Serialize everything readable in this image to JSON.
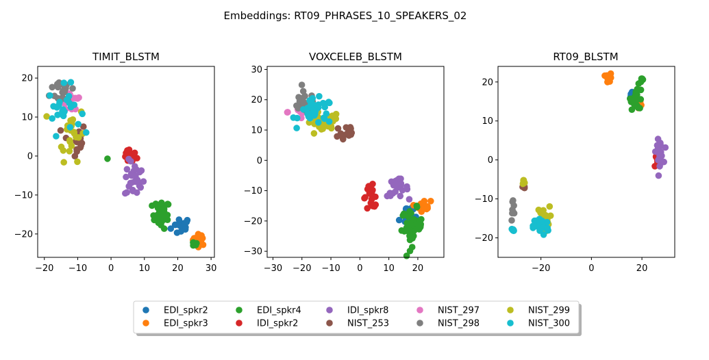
{
  "figure_title": "Embeddings: RT09_PHRASES_10_SPEAKERS_02",
  "colors": {
    "EDI_spkr2": "#1f77b4",
    "EDI_spkr3": "#ff7f0e",
    "EDI_spkr4": "#2ca02c",
    "IDI_spkr2": "#d62728",
    "IDI_spkr8": "#9467bd",
    "NIST_253": "#8c564b",
    "NIST_297": "#e377c2",
    "NIST_298": "#7f7f7f",
    "NIST_299": "#bcbd22",
    "NIST_300": "#17becf"
  },
  "legend": {
    "entries": [
      "EDI_spkr2",
      "EDI_spkr3",
      "EDI_spkr4",
      "IDI_spkr2",
      "IDI_spkr8",
      "NIST_253",
      "NIST_297",
      "NIST_298",
      "NIST_299",
      "NIST_300"
    ],
    "columns": 6,
    "placement": "lower-center"
  },
  "chart_data": [
    {
      "type": "scatter",
      "title": "TIMIT_BLSTM",
      "xlabel": "",
      "ylabel": "",
      "xlim": [
        -22,
        31
      ],
      "ylim": [
        -26,
        23
      ],
      "xticks": [
        -20,
        -10,
        0,
        10,
        20,
        30
      ],
      "yticks": [
        -20,
        -10,
        0,
        10,
        20
      ],
      "series": [
        {
          "name": "EDI_spkr2",
          "clusters": [
            {
              "cx": 21,
              "cy": -18,
              "sx": 2.5,
              "sy": 2,
              "n": 16
            }
          ]
        },
        {
          "name": "EDI_spkr3",
          "clusters": [
            {
              "cx": 26.5,
              "cy": -21.5,
              "sx": 1.6,
              "sy": 1.2,
              "n": 22
            }
          ]
        },
        {
          "name": "EDI_spkr4",
          "clusters": [
            {
              "cx": 15,
              "cy": -15,
              "sx": 2.2,
              "sy": 3,
              "n": 28
            },
            {
              "cx": 25,
              "cy": -22.5,
              "sx": 0.6,
              "sy": 0.6,
              "n": 6
            },
            {
              "cx": -1,
              "cy": -1,
              "sx": 0.2,
              "sy": 0.2,
              "n": 1
            }
          ]
        },
        {
          "name": "IDI_spkr2",
          "clusters": [
            {
              "cx": 5.5,
              "cy": 0,
              "sx": 1.8,
              "sy": 1.6,
              "n": 18
            }
          ]
        },
        {
          "name": "IDI_spkr8",
          "clusters": [
            {
              "cx": 7,
              "cy": -6,
              "sx": 2.4,
              "sy": 4,
              "n": 28
            }
          ]
        },
        {
          "name": "NIST_253",
          "clusters": [
            {
              "cx": -11,
              "cy": 4,
              "sx": 3,
              "sy": 4,
              "n": 14
            }
          ]
        },
        {
          "name": "NIST_297",
          "clusters": [
            {
              "cx": -12,
              "cy": 14,
              "sx": 3,
              "sy": 3,
              "n": 12
            }
          ]
        },
        {
          "name": "NIST_298",
          "clusters": [
            {
              "cx": -14,
              "cy": 17,
              "sx": 3.5,
              "sy": 3,
              "n": 18
            }
          ]
        },
        {
          "name": "NIST_299",
          "clusters": [
            {
              "cx": -12,
              "cy": 6,
              "sx": 3.5,
              "sy": 6,
              "n": 22
            }
          ]
        },
        {
          "name": "NIST_300",
          "clusters": [
            {
              "cx": -14,
              "cy": 12,
              "sx": 4,
              "sy": 5,
              "n": 24
            }
          ]
        }
      ]
    },
    {
      "type": "scatter",
      "title": "VOXCELEB_BLSTM",
      "xlabel": "",
      "ylabel": "",
      "xlim": [
        -32,
        29
      ],
      "ylim": [
        -32,
        31
      ],
      "xticks": [
        -30,
        -20,
        -10,
        0,
        10,
        20
      ],
      "yticks": [
        -30,
        -20,
        -10,
        0,
        10,
        20,
        30
      ],
      "series": [
        {
          "name": "EDI_spkr2",
          "clusters": [
            {
              "cx": 16,
              "cy": -18,
              "sx": 2,
              "sy": 4,
              "n": 18
            }
          ]
        },
        {
          "name": "EDI_spkr3",
          "clusters": [
            {
              "cx": 22,
              "cy": -15,
              "sx": 2,
              "sy": 1.5,
              "n": 22
            }
          ]
        },
        {
          "name": "EDI_spkr4",
          "clusters": [
            {
              "cx": 18,
              "cy": -22,
              "sx": 3,
              "sy": 5,
              "n": 40
            }
          ]
        },
        {
          "name": "IDI_spkr2",
          "clusters": [
            {
              "cx": 4,
              "cy": -12,
              "sx": 2.5,
              "sy": 3,
              "n": 20
            }
          ]
        },
        {
          "name": "IDI_spkr8",
          "clusters": [
            {
              "cx": 13,
              "cy": -9,
              "sx": 3,
              "sy": 2.5,
              "n": 24
            }
          ]
        },
        {
          "name": "NIST_253",
          "clusters": [
            {
              "cx": -5,
              "cy": 9,
              "sx": 3,
              "sy": 3,
              "n": 16
            }
          ]
        },
        {
          "name": "NIST_297",
          "clusters": [
            {
              "cx": -20,
              "cy": 16,
              "sx": 4,
              "sy": 3,
              "n": 14
            }
          ]
        },
        {
          "name": "NIST_298",
          "clusters": [
            {
              "cx": -19,
              "cy": 19,
              "sx": 4,
              "sy": 3,
              "n": 20
            }
          ]
        },
        {
          "name": "NIST_299",
          "clusters": [
            {
              "cx": -13,
              "cy": 12,
              "sx": 5,
              "sy": 3.5,
              "n": 30
            }
          ]
        },
        {
          "name": "NIST_300",
          "clusters": [
            {
              "cx": -15,
              "cy": 16,
              "sx": 5,
              "sy": 3.5,
              "n": 34
            }
          ]
        }
      ]
    },
    {
      "type": "scatter",
      "title": "RT09_BLSTM",
      "xlabel": "",
      "ylabel": "",
      "xlim": [
        -37,
        33
      ],
      "ylim": [
        -25,
        24
      ],
      "xticks": [
        -20,
        0,
        20
      ],
      "yticks": [
        -20,
        -10,
        0,
        10,
        20
      ],
      "series": [
        {
          "name": "EDI_spkr2",
          "clusters": [
            {
              "cx": 16,
              "cy": 16.5,
              "sx": 0.7,
              "sy": 1.2,
              "n": 10
            }
          ]
        },
        {
          "name": "EDI_spkr3",
          "clusters": [
            {
              "cx": 7,
              "cy": 21,
              "sx": 1,
              "sy": 1,
              "n": 14
            },
            {
              "cx": 19,
              "cy": 15,
              "sx": 0.8,
              "sy": 2,
              "n": 6
            }
          ]
        },
        {
          "name": "EDI_spkr4",
          "clusters": [
            {
              "cx": 18,
              "cy": 16,
              "sx": 2,
              "sy": 2.5,
              "n": 22
            },
            {
              "cx": 20,
              "cy": 20.5,
              "sx": 0.5,
              "sy": 0.4,
              "n": 6
            }
          ]
        },
        {
          "name": "IDI_spkr2",
          "clusters": [
            {
              "cx": 26,
              "cy": 0,
              "sx": 1,
              "sy": 2,
              "n": 10
            }
          ]
        },
        {
          "name": "IDI_spkr8",
          "clusters": [
            {
              "cx": 27,
              "cy": 2,
              "sx": 1.2,
              "sy": 2.5,
              "n": 24
            }
          ]
        },
        {
          "name": "NIST_253",
          "clusters": [
            {
              "cx": -27,
              "cy": -7,
              "sx": 0.6,
              "sy": 0.6,
              "n": 5
            }
          ]
        },
        {
          "name": "NIST_297",
          "clusters": [
            {
              "cx": -20,
              "cy": -15,
              "sx": 1,
              "sy": 1.5,
              "n": 3
            }
          ]
        },
        {
          "name": "NIST_298",
          "clusters": [
            {
              "cx": -31,
              "cy": -13,
              "sx": 0.8,
              "sy": 2.5,
              "n": 8
            }
          ]
        },
        {
          "name": "NIST_299",
          "clusters": [
            {
              "cx": -19,
              "cy": -15,
              "sx": 2,
              "sy": 2.5,
              "n": 26
            },
            {
              "cx": -27,
              "cy": -6,
              "sx": 0.6,
              "sy": 0.8,
              "n": 6
            }
          ]
        },
        {
          "name": "NIST_300",
          "clusters": [
            {
              "cx": -20,
              "cy": -17,
              "sx": 2.5,
              "sy": 2,
              "n": 28
            },
            {
              "cx": -31,
              "cy": -18,
              "sx": 0.8,
              "sy": 0.5,
              "n": 8
            }
          ]
        }
      ]
    }
  ]
}
